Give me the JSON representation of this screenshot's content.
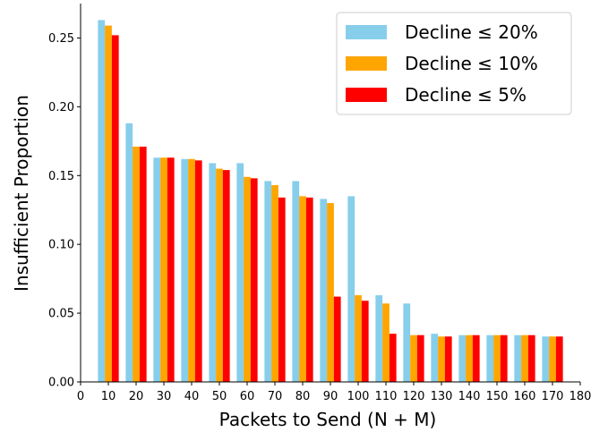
{
  "chart_data": {
    "type": "bar",
    "xlabel": "Packets to Send (N + M)",
    "ylabel": "Insufficient Proportion",
    "x": [
      10,
      20,
      30,
      40,
      50,
      60,
      70,
      80,
      90,
      100,
      110,
      120,
      130,
      140,
      150,
      160,
      170
    ],
    "xlim": [
      0,
      180
    ],
    "ylim": [
      0,
      0.275
    ],
    "x_ticks": [
      0,
      10,
      20,
      30,
      40,
      50,
      60,
      70,
      80,
      90,
      100,
      110,
      120,
      130,
      140,
      150,
      160,
      170,
      180
    ],
    "y_ticks": [
      "0.00",
      "0.05",
      "0.10",
      "0.15",
      "0.20",
      "0.25"
    ],
    "grid": false,
    "legend_position": "top-right",
    "series": [
      {
        "name": "Decline ≤ 20%",
        "color": "#87CEEB",
        "values": [
          0.263,
          0.188,
          0.163,
          0.162,
          0.159,
          0.159,
          0.146,
          0.146,
          0.133,
          0.135,
          0.063,
          0.057,
          0.035,
          0.034,
          0.034,
          0.034,
          0.033
        ]
      },
      {
        "name": "Decline ≤ 10%",
        "color": "#FFA500",
        "values": [
          0.259,
          0.171,
          0.163,
          0.162,
          0.155,
          0.149,
          0.143,
          0.135,
          0.13,
          0.063,
          0.057,
          0.034,
          0.033,
          0.034,
          0.034,
          0.034,
          0.033
        ]
      },
      {
        "name": "Decline ≤ 5%",
        "color": "#FF0000",
        "values": [
          0.252,
          0.171,
          0.163,
          0.161,
          0.154,
          0.148,
          0.134,
          0.134,
          0.062,
          0.059,
          0.035,
          0.034,
          0.033,
          0.034,
          0.034,
          0.034,
          0.033
        ]
      }
    ]
  }
}
